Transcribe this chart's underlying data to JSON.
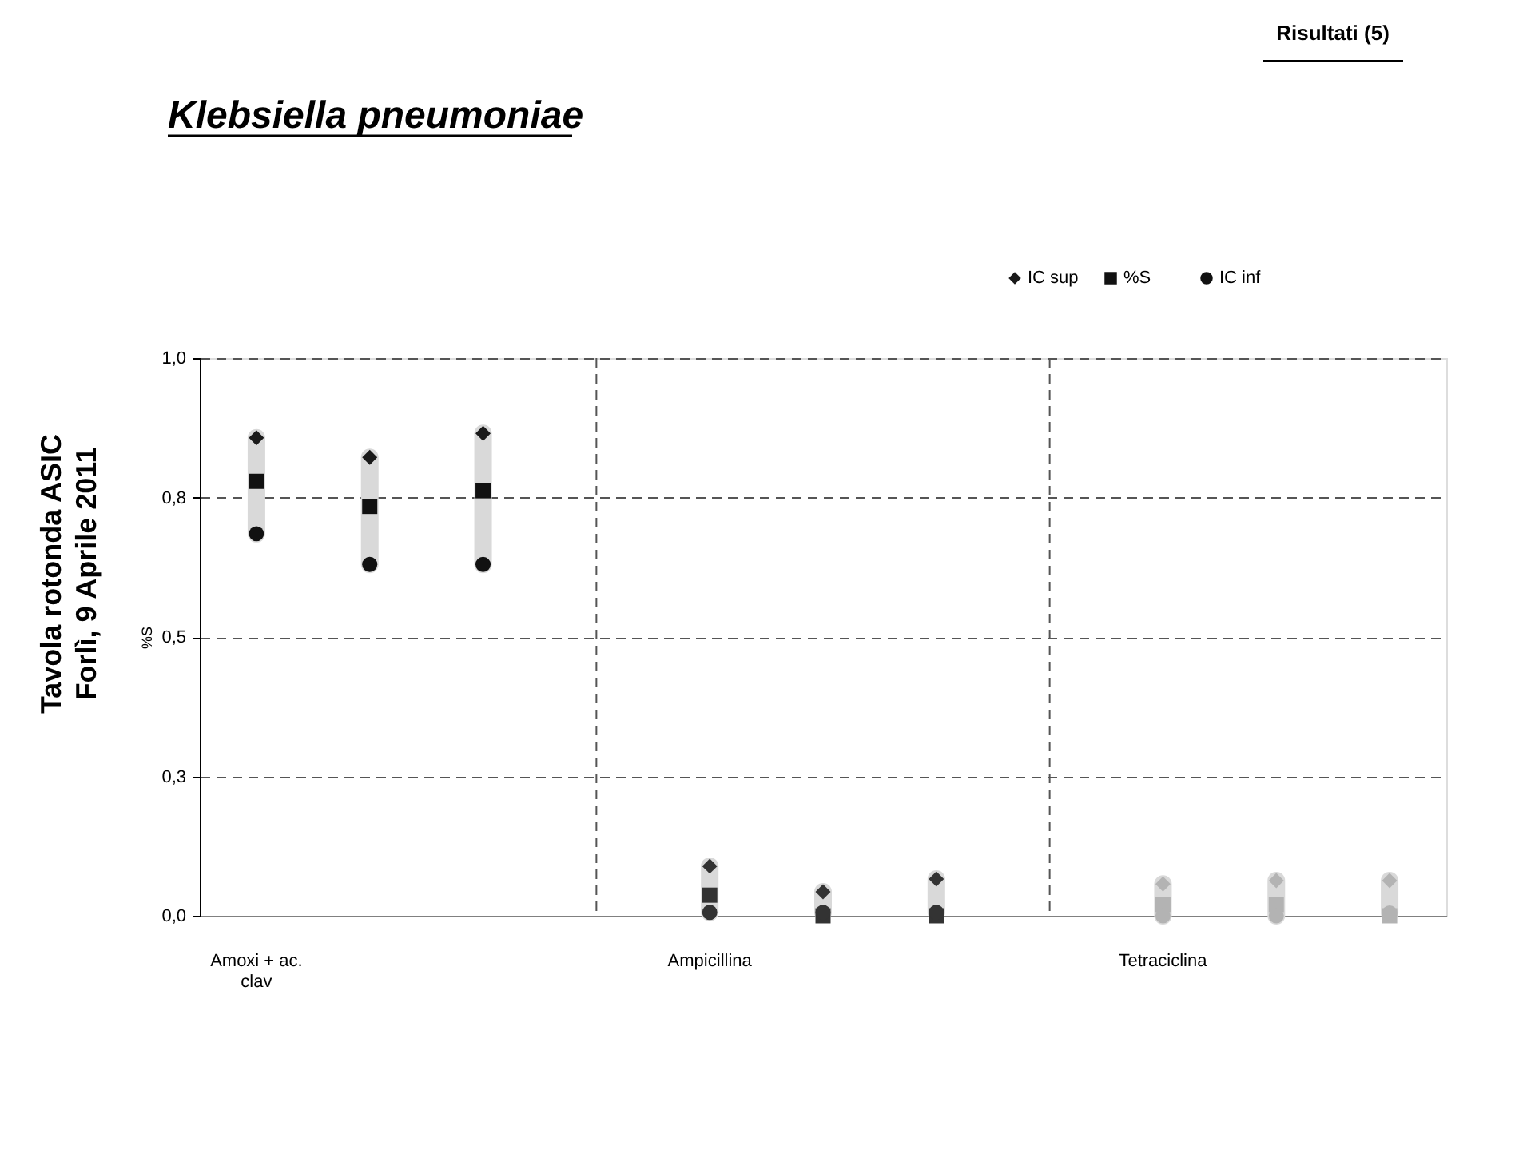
{
  "chart_data": {
    "type": "scatter",
    "title": "Klebsiella pneumoniae",
    "ylabel": "%S",
    "annotations": [
      "Risultati (5)",
      "Tavola rotonda ASIC",
      "Forlì, 9 Aprile 2011"
    ],
    "categories": [
      "Amoxi + ac. clav",
      null,
      null,
      null,
      "Ampicillina",
      null,
      null,
      null,
      "Tetraciclina",
      null,
      null
    ],
    "series": [
      {
        "name": "IC sup",
        "marker": "diamond",
        "values": [
          0.857,
          0.822,
          0.865,
          null,
          0.089,
          0.043,
          0.066,
          null,
          0.057,
          0.063,
          0.063
        ],
        "colors": [
          "#1a1a1a",
          "#1a1a1a",
          "#1a1a1a",
          null,
          "#333333",
          "#333333",
          "#333333",
          null,
          "#b3b3b3",
          "#b3b3b3",
          "#b3b3b3"
        ]
      },
      {
        "name": "%S",
        "marker": "square",
        "values": [
          0.779,
          0.734,
          0.762,
          null,
          0.037,
          0.0,
          0.0,
          null,
          0.02,
          0.02,
          0.0
        ],
        "colors": [
          "#111111",
          "#111111",
          "#111111",
          null,
          "#333333",
          "#333333",
          "#333333",
          null,
          "#b3b3b3",
          "#b3b3b3",
          "#b3b3b3"
        ]
      },
      {
        "name": "IC inf",
        "marker": "circle",
        "values": [
          0.685,
          0.63,
          0.63,
          null,
          0.006,
          0.006,
          0.006,
          null,
          0.0,
          0.0,
          0.005
        ],
        "colors": [
          "#111111",
          "#111111",
          "#111111",
          null,
          "#333333",
          "#333333",
          "#333333",
          null,
          "#b3b3b3",
          "#b3b3b3",
          "#b3b3b3"
        ]
      }
    ],
    "ylim": [
      0,
      1
    ],
    "yticks": [
      {
        "value": 0,
        "label": "0,0"
      },
      {
        "value": 0.25,
        "label": "0,3"
      },
      {
        "value": 0.5,
        "label": "0,5"
      },
      {
        "value": 0.75,
        "label": "0,8"
      },
      {
        "value": 1,
        "label": "1,0"
      }
    ],
    "grid": true,
    "legend": "top right"
  }
}
